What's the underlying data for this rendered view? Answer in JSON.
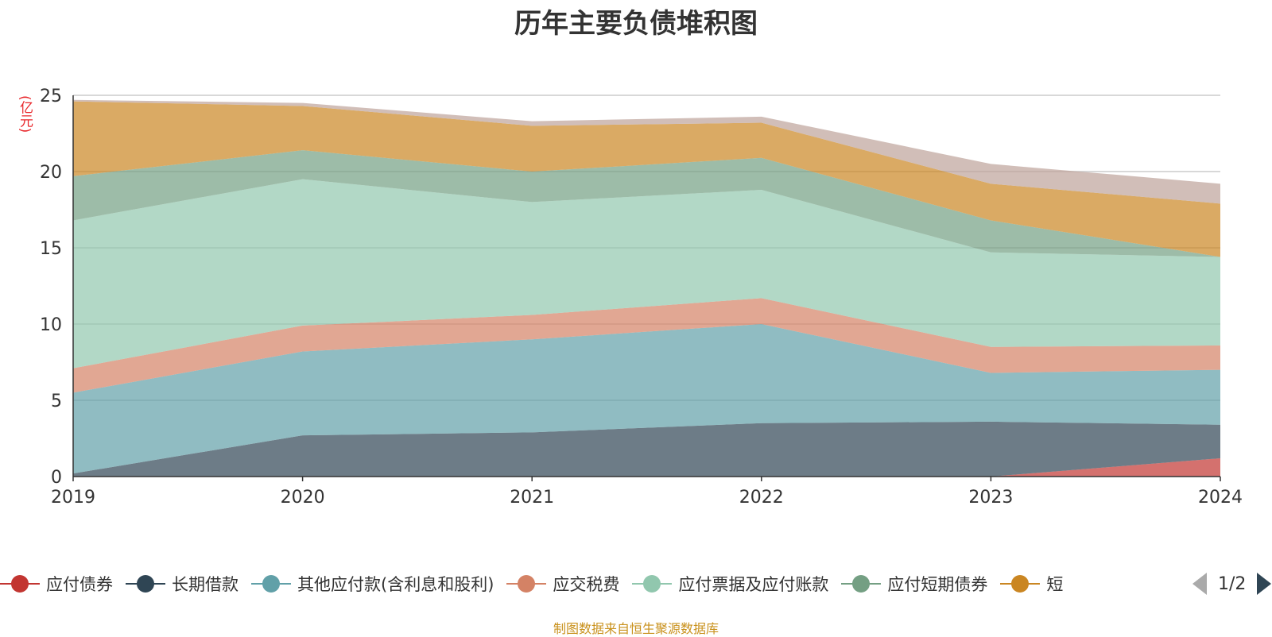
{
  "chart_data": {
    "type": "area",
    "stacked": true,
    "title": "历年主要负债堆积图",
    "unit_label": "(亿元)",
    "x": [
      "2019",
      "2020",
      "2021",
      "2022",
      "2023",
      "2024"
    ],
    "ylim": [
      0,
      25
    ],
    "yticks": [
      "0",
      "5",
      "10",
      "15",
      "20",
      "25"
    ],
    "grid": true,
    "series": [
      {
        "name": "应付债券",
        "color": "#c23531",
        "values": [
          0,
          0,
          0,
          0,
          0,
          1.2
        ]
      },
      {
        "name": "长期借款",
        "color": "#2f4554",
        "values": [
          0.2,
          2.7,
          2.9,
          3.5,
          3.6,
          2.2
        ]
      },
      {
        "name": "其他应付款(含利息和股利)",
        "color": "#61a0a8",
        "values": [
          5.3,
          5.5,
          6.1,
          6.5,
          3.2,
          3.6
        ]
      },
      {
        "name": "应交税费",
        "color": "#d48265",
        "values": [
          1.6,
          1.7,
          1.6,
          1.7,
          1.7,
          1.6
        ]
      },
      {
        "name": "应付票据及应付账款",
        "color": "#91c7ae",
        "values": [
          9.7,
          9.6,
          7.4,
          7.1,
          6.2,
          5.8
        ]
      },
      {
        "name": "应付短期债券",
        "color": "#749f83",
        "values": [
          2.9,
          1.9,
          2.0,
          2.1,
          2.1,
          0
        ]
      },
      {
        "name": "短期借款",
        "color": "#ca8622",
        "values": [
          4.9,
          2.9,
          3.0,
          2.3,
          2.4,
          3.5
        ]
      },
      {
        "name": "",
        "color": "#bda29a",
        "values": [
          0.1,
          0.2,
          0.3,
          0.4,
          1.3,
          1.3
        ]
      }
    ]
  },
  "legend": {
    "visible_items": [
      {
        "label": "应付债券",
        "color": "#c23531"
      },
      {
        "label": "长期借款",
        "color": "#2f4554"
      },
      {
        "label": "其他应付款(含利息和股利)",
        "color": "#61a0a8"
      },
      {
        "label": "应交税费",
        "color": "#d48265"
      },
      {
        "label": "应付票据及应付账款",
        "color": "#91c7ae"
      },
      {
        "label": "应付短期债券",
        "color": "#749f83"
      },
      {
        "label": "短",
        "color": "#ca8622"
      }
    ],
    "page": "1/2"
  },
  "source_note": "制图数据来自恒生聚源数据库"
}
